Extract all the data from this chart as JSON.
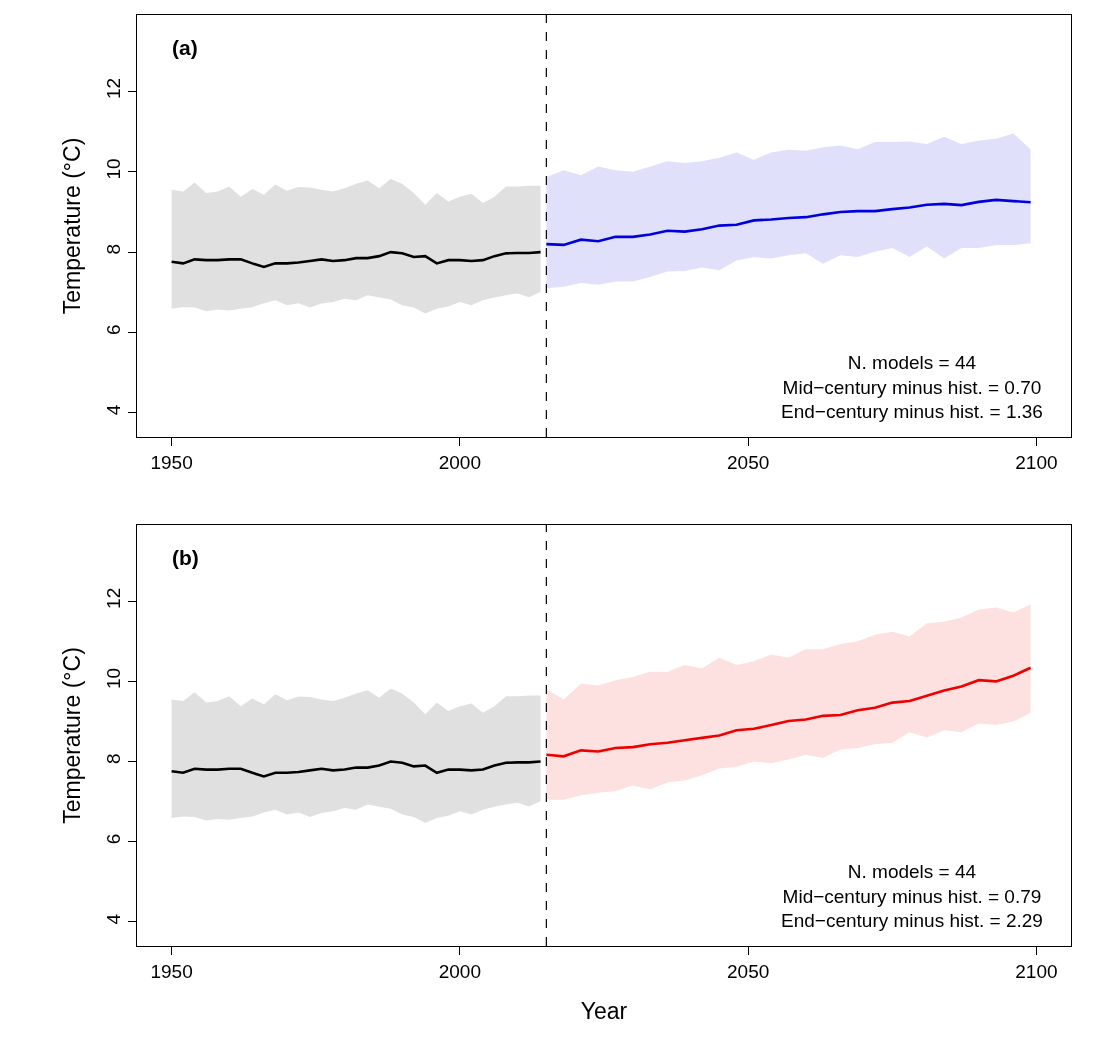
{
  "chart_data": [
    {
      "type": "line",
      "title": "(a)",
      "ylabel": "Temperature (°C)",
      "xlim": [
        1944,
        2106
      ],
      "xticks": [
        1950,
        2000,
        2050,
        2100
      ],
      "ylim": [
        3.4,
        13.9
      ],
      "yticks": [
        4,
        6,
        8,
        10,
        12
      ],
      "grid": false,
      "marker": "none",
      "line_style": "solid",
      "series": [
        {
          "color": "#000000",
          "x": [
            1950,
            1952,
            1954,
            1956,
            1958,
            1960,
            1962,
            1964,
            1966,
            1968,
            1970,
            1972,
            1974,
            1976,
            1978,
            1980,
            1982,
            1984,
            1986,
            1988,
            1990,
            1992,
            1994,
            1996,
            1998,
            2000,
            2002,
            2004,
            2006,
            2008,
            2010,
            2012,
            2014
          ],
          "values": [
            7.76,
            7.72,
            7.82,
            7.8,
            7.8,
            7.82,
            7.82,
            7.72,
            7.63,
            7.72,
            7.72,
            7.74,
            7.78,
            7.82,
            7.78,
            7.8,
            7.85,
            7.85,
            7.9,
            8.0,
            7.97,
            7.88,
            7.9,
            7.72,
            7.8,
            7.8,
            7.78,
            7.8,
            7.9,
            7.97,
            7.98,
            7.98,
            8.0
          ],
          "lower": [
            6.59,
            6.63,
            6.62,
            6.53,
            6.57,
            6.55,
            6.59,
            6.63,
            6.73,
            6.8,
            6.68,
            6.73,
            6.62,
            6.72,
            6.76,
            6.84,
            6.8,
            6.93,
            6.87,
            6.82,
            6.68,
            6.62,
            6.47,
            6.59,
            6.65,
            6.76,
            6.68,
            6.8,
            6.87,
            6.93,
            6.97,
            6.88,
            7.01
          ],
          "upper": [
            9.55,
            9.51,
            9.73,
            9.47,
            9.51,
            9.63,
            9.38,
            9.57,
            9.43,
            9.68,
            9.53,
            9.62,
            9.61,
            9.55,
            9.51,
            9.59,
            9.7,
            9.78,
            9.59,
            9.82,
            9.7,
            9.47,
            9.18,
            9.47,
            9.26,
            9.38,
            9.45,
            9.22,
            9.38,
            9.63,
            9.63,
            9.65,
            9.65
          ]
        },
        {
          "color": "#0000dd",
          "x": [
            2015,
            2018,
            2021,
            2024,
            2027,
            2030,
            2033,
            2036,
            2039,
            2042,
            2045,
            2048,
            2051,
            2054,
            2057,
            2060,
            2063,
            2066,
            2069,
            2072,
            2075,
            2078,
            2081,
            2084,
            2087,
            2090,
            2093,
            2096,
            2099
          ],
          "values": [
            8.2,
            8.18,
            8.31,
            8.27,
            8.38,
            8.38,
            8.44,
            8.53,
            8.51,
            8.57,
            8.66,
            8.68,
            8.79,
            8.81,
            8.85,
            8.87,
            8.94,
            9.0,
            9.02,
            9.02,
            9.07,
            9.11,
            9.18,
            9.2,
            9.17,
            9.25,
            9.3,
            9.27,
            9.24
          ],
          "lower": [
            7.1,
            7.14,
            7.23,
            7.19,
            7.27,
            7.27,
            7.38,
            7.52,
            7.53,
            7.62,
            7.55,
            7.79,
            7.88,
            7.84,
            7.92,
            7.97,
            7.71,
            7.92,
            7.88,
            8.01,
            8.1,
            7.88,
            8.14,
            7.84,
            8.1,
            8.1,
            8.18,
            8.18,
            8.22
          ],
          "upper": [
            9.87,
            10.04,
            9.91,
            10.13,
            10.04,
            10.0,
            10.13,
            10.26,
            10.22,
            10.26,
            10.35,
            10.48,
            10.3,
            10.48,
            10.55,
            10.52,
            10.61,
            10.65,
            10.56,
            10.74,
            10.74,
            10.75,
            10.69,
            10.87,
            10.69,
            10.78,
            10.82,
            10.95,
            10.56
          ]
        }
      ],
      "ref_lines": [
        {
          "axis": "x",
          "value": 2015,
          "color": "#000000",
          "line_style": "dashed"
        }
      ],
      "annotations": [
        "N. models = 44",
        "Mid−century minus hist. = 0.70",
        "End−century minus hist. = 1.36"
      ]
    },
    {
      "type": "line",
      "title": "(b)",
      "xlabel": "Year",
      "ylabel": "Temperature (°C)",
      "xlim": [
        1944,
        2106
      ],
      "xticks": [
        1950,
        2000,
        2050,
        2100
      ],
      "ylim": [
        3.4,
        13.9
      ],
      "yticks": [
        4,
        6,
        8,
        10,
        12
      ],
      "grid": false,
      "marker": "none",
      "line_style": "solid",
      "series": [
        {
          "color": "#000000",
          "x": [
            1950,
            1952,
            1954,
            1956,
            1958,
            1960,
            1962,
            1964,
            1966,
            1968,
            1970,
            1972,
            1974,
            1976,
            1978,
            1980,
            1982,
            1984,
            1986,
            1988,
            1990,
            1992,
            1994,
            1996,
            1998,
            2000,
            2002,
            2004,
            2006,
            2008,
            2010,
            2012,
            2014
          ],
          "values": [
            7.76,
            7.72,
            7.82,
            7.8,
            7.8,
            7.82,
            7.82,
            7.72,
            7.63,
            7.72,
            7.72,
            7.74,
            7.78,
            7.82,
            7.78,
            7.8,
            7.85,
            7.85,
            7.9,
            8.0,
            7.97,
            7.88,
            7.9,
            7.72,
            7.8,
            7.8,
            7.78,
            7.8,
            7.9,
            7.97,
            7.98,
            7.98,
            8.0
          ],
          "lower": [
            6.59,
            6.63,
            6.62,
            6.53,
            6.57,
            6.55,
            6.59,
            6.63,
            6.73,
            6.8,
            6.68,
            6.73,
            6.62,
            6.72,
            6.76,
            6.84,
            6.8,
            6.93,
            6.87,
            6.82,
            6.68,
            6.62,
            6.47,
            6.59,
            6.65,
            6.76,
            6.68,
            6.8,
            6.87,
            6.93,
            6.97,
            6.88,
            7.01
          ],
          "upper": [
            9.55,
            9.51,
            9.73,
            9.47,
            9.51,
            9.63,
            9.38,
            9.57,
            9.43,
            9.68,
            9.53,
            9.62,
            9.61,
            9.55,
            9.51,
            9.59,
            9.7,
            9.78,
            9.59,
            9.82,
            9.7,
            9.47,
            9.18,
            9.47,
            9.26,
            9.38,
            9.45,
            9.22,
            9.38,
            9.63,
            9.63,
            9.65,
            9.65
          ]
        },
        {
          "color": "#ee0000",
          "x": [
            2015,
            2018,
            2021,
            2024,
            2027,
            2030,
            2033,
            2036,
            2039,
            2042,
            2045,
            2048,
            2051,
            2054,
            2057,
            2060,
            2063,
            2066,
            2069,
            2072,
            2075,
            2078,
            2081,
            2084,
            2087,
            2090,
            2093,
            2096,
            2099
          ],
          "values": [
            8.17,
            8.13,
            8.28,
            8.25,
            8.34,
            8.36,
            8.43,
            8.47,
            8.53,
            8.59,
            8.65,
            8.78,
            8.82,
            8.91,
            9.01,
            9.05,
            9.14,
            9.16,
            9.28,
            9.34,
            9.47,
            9.51,
            9.64,
            9.77,
            9.87,
            10.03,
            10.0,
            10.14,
            10.34
          ],
          "lower": [
            7.05,
            7.05,
            7.16,
            7.22,
            7.26,
            7.4,
            7.31,
            7.48,
            7.53,
            7.66,
            7.83,
            7.87,
            8.0,
            7.96,
            8.05,
            8.17,
            8.09,
            8.3,
            8.34,
            8.43,
            8.47,
            8.73,
            8.6,
            8.78,
            8.73,
            8.95,
            8.91,
            9.0,
            9.21
          ],
          "upper": [
            9.81,
            9.55,
            9.94,
            9.9,
            10.03,
            10.11,
            10.24,
            10.24,
            10.41,
            10.33,
            10.59,
            10.41,
            10.5,
            10.67,
            10.59,
            10.8,
            10.8,
            10.93,
            11.0,
            11.16,
            11.24,
            11.12,
            11.45,
            11.49,
            11.59,
            11.79,
            11.84,
            11.72,
            11.92
          ]
        }
      ],
      "ref_lines": [
        {
          "axis": "x",
          "value": 2015,
          "color": "#000000",
          "line_style": "dashed"
        }
      ],
      "annotations": [
        "N. models = 44",
        "Mid−century minus hist. = 0.79",
        "End−century minus hist. = 2.29"
      ]
    }
  ]
}
